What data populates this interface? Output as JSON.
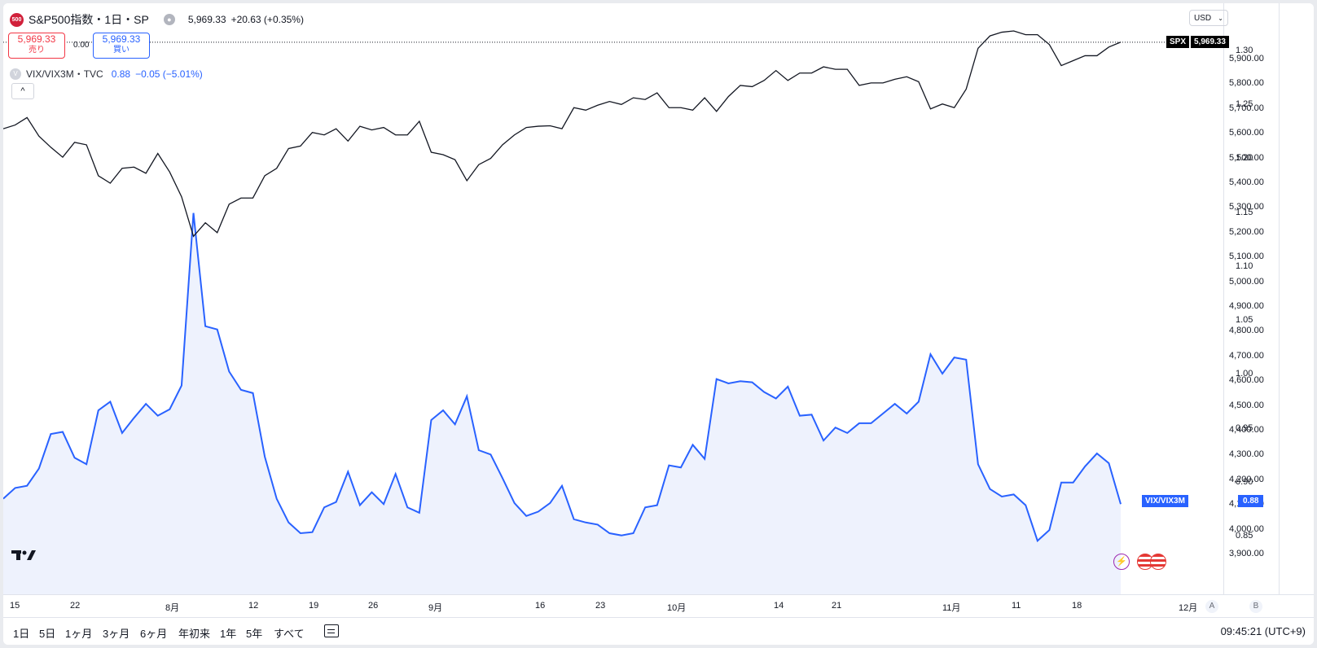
{
  "legend": {
    "icon": "500",
    "title": "S&P500指数・1日・SP",
    "price": "5,969.33",
    "change": "+20.63 (+0.35%)"
  },
  "trade": {
    "sell_price": "5,969.33",
    "sell_label": "売り",
    "spread": "0.00",
    "buy_price": "5,969.33",
    "buy_label": "買い"
  },
  "overlay": {
    "badge": "V",
    "title": "VIX/VIX3M・TVC",
    "value": "0.88",
    "change": "−0.05 (−5.01%)"
  },
  "collapse_label": "^",
  "currency": "USD",
  "left_axis": [
    "5,900.00",
    "5,800.00",
    "5,700.00",
    "5,600.00",
    "5,500.00",
    "5,400.00",
    "5,300.00",
    "5,200.00",
    "5,100.00",
    "5,000.00",
    "4,900.00",
    "4,800.00",
    "4,700.00",
    "4,600.00",
    "4,500.00",
    "4,400.00",
    "4,300.00",
    "4,200.00",
    "4,100.00",
    "4,000.00",
    "3,900.00"
  ],
  "right_axis": [
    "1.30",
    "1.25",
    "1.20",
    "1.15",
    "1.10",
    "1.05",
    "1.00",
    "0.95",
    "0.90",
    "0.85"
  ],
  "tags": {
    "spx_name": "SPX",
    "spx_value": "5,969.33",
    "vix_name": "VIX/VIX3M",
    "vix_value": "0.88"
  },
  "time_axis": [
    "15",
    "22",
    "8月",
    "12",
    "19",
    "26",
    "9月",
    "16",
    "23",
    "10月",
    "14",
    "21",
    "11月",
    "11",
    "18",
    "12月"
  ],
  "axis_buttons": {
    "a": "A",
    "b": "B"
  },
  "timeframes": [
    "1日",
    "5日",
    "1ヶ月",
    "3ヶ月",
    "6ヶ月",
    "年初来",
    "1年",
    "5年",
    "すべて"
  ],
  "clock": "09:45:21 (UTC+9)",
  "colors": {
    "spx": "#131722",
    "vix": "#2962ff",
    "down": "#f23645",
    "up": "#2962ff"
  },
  "chart_data": {
    "type": "line",
    "series": [
      {
        "name": "SPX",
        "axis": "left",
        "values": [
          5620,
          5635,
          5665,
          5590,
          5545,
          5505,
          5565,
          5555,
          5430,
          5400,
          5460,
          5465,
          5440,
          5520,
          5445,
          5345,
          5185,
          5240,
          5200,
          5315,
          5340,
          5340,
          5430,
          5460,
          5540,
          5550,
          5605,
          5595,
          5620,
          5570,
          5630,
          5615,
          5625,
          5595,
          5595,
          5650,
          5525,
          5515,
          5495,
          5410,
          5475,
          5500,
          5555,
          5595,
          5625,
          5630,
          5632,
          5620,
          5705,
          5695,
          5715,
          5730,
          5718,
          5745,
          5738,
          5765,
          5705,
          5705,
          5695,
          5745,
          5690,
          5750,
          5795,
          5790,
          5815,
          5855,
          5815,
          5845,
          5845,
          5870,
          5860,
          5860,
          5795,
          5805,
          5805,
          5820,
          5830,
          5810,
          5700,
          5720,
          5705,
          5780,
          5945,
          5995,
          6010,
          6015,
          6000,
          6000,
          5960,
          5875,
          5895,
          5915,
          5915,
          5950,
          5970
        ]
      },
      {
        "name": "VIX/VIX3M",
        "axis": "right",
        "values": [
          0.885,
          0.895,
          0.897,
          0.913,
          0.945,
          0.947,
          0.923,
          0.917,
          0.967,
          0.975,
          0.946,
          0.96,
          0.973,
          0.962,
          0.968,
          0.99,
          1.15,
          1.045,
          1.042,
          1.003,
          0.986,
          0.983,
          0.924,
          0.885,
          0.863,
          0.853,
          0.854,
          0.877,
          0.882,
          0.91,
          0.879,
          0.891,
          0.88,
          0.908,
          0.877,
          0.872,
          0.958,
          0.967,
          0.954,
          0.98,
          0.93,
          0.926,
          0.904,
          0.881,
          0.869,
          0.873,
          0.881,
          0.897,
          0.866,
          0.863,
          0.861,
          0.853,
          0.851,
          0.853,
          0.877,
          0.879,
          0.916,
          0.914,
          0.935,
          0.922,
          0.996,
          0.992,
          0.994,
          0.993,
          0.984,
          0.978,
          0.989,
          0.962,
          0.963,
          0.939,
          0.951,
          0.946,
          0.955,
          0.955,
          0.964,
          0.973,
          0.964,
          0.975,
          1.019,
          1.001,
          1.016,
          1.014,
          0.917,
          0.894,
          0.887,
          0.889,
          0.879,
          0.846,
          0.856,
          0.9,
          0.9,
          0.915,
          0.927,
          0.918,
          0.88
        ]
      }
    ],
    "xlabels": [
      "15",
      "22",
      "8月",
      "12",
      "19",
      "26",
      "9月",
      "16",
      "23",
      "10月",
      "14",
      "21",
      "11月",
      "11",
      "18",
      "12月"
    ],
    "ylim_left": [
      3840,
      6070
    ],
    "ylim_right": [
      0.82,
      1.33
    ],
    "grid": false
  }
}
